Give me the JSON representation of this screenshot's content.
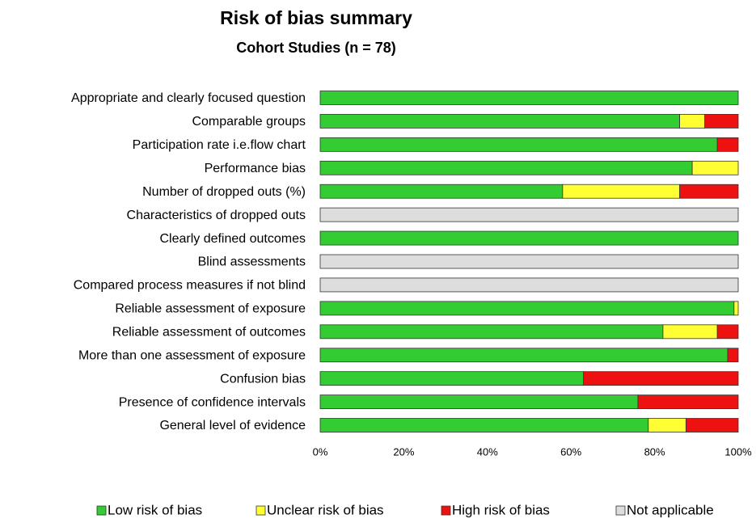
{
  "chart_data": {
    "type": "stacked-bar-horizontal",
    "title": "Risk of bias summary",
    "subtitle": "Cohort Studies (n = 78)",
    "categories": [
      "Appropriate and clearly focused question",
      "Comparable groups",
      "Participation rate i.e.flow chart",
      "Performance bias",
      "Number of dropped outs (%)",
      "Characteristics of dropped outs",
      "Clearly defined outcomes",
      "Blind assessments",
      "Compared process measures if not blind",
      "Reliable assessment of exposure",
      "Reliable assessment of outcomes",
      "More than one assessment of exposure",
      "Confusion bias",
      "Presence of confidence intervals",
      "General level of evidence"
    ],
    "series": [
      {
        "name": "Low risk of bias",
        "color": "#33cc33",
        "values": [
          100,
          86,
          95,
          89,
          58,
          0,
          100,
          0,
          0,
          99,
          82,
          97.5,
          63,
          76,
          78.5
        ]
      },
      {
        "name": "Unclear risk of bias",
        "color": "#ffff33",
        "values": [
          0,
          6,
          0,
          11,
          28,
          0,
          0,
          0,
          0,
          1,
          13,
          0,
          0,
          0,
          9
        ]
      },
      {
        "name": "High risk of bias",
        "color": "#ee1111",
        "values": [
          0,
          8,
          5,
          0,
          14,
          0,
          0,
          0,
          0,
          0,
          5,
          2.5,
          37,
          24,
          12.5
        ]
      },
      {
        "name": "Not applicable",
        "color": "#dddddd",
        "values": [
          0,
          0,
          0,
          0,
          0,
          100,
          0,
          100,
          100,
          0,
          0,
          0,
          0,
          0,
          0
        ]
      }
    ],
    "xlim": [
      0,
      100
    ],
    "xticks": [
      {
        "value": 0,
        "label": "0%"
      },
      {
        "value": 20,
        "label": "20%"
      },
      {
        "value": 40,
        "label": "40%"
      },
      {
        "value": 60,
        "label": "60%"
      },
      {
        "value": 80,
        "label": "80%"
      },
      {
        "value": 100,
        "label": "100%"
      }
    ],
    "legend": "bottom"
  }
}
